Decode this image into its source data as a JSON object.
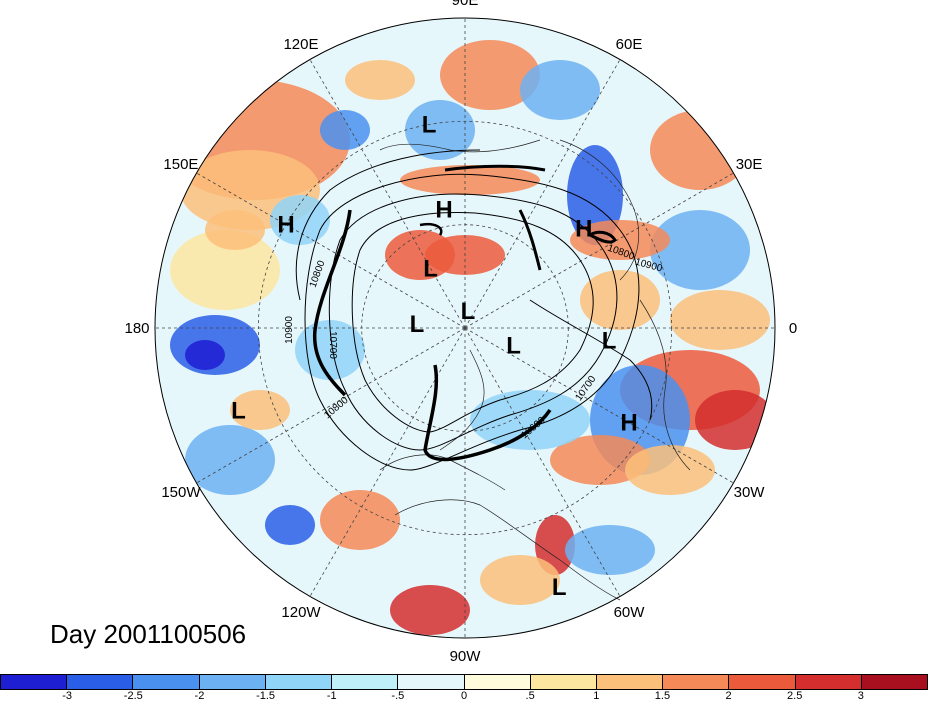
{
  "day_label": "Day 2001100506",
  "longitude_labels": [
    "90E",
    "60E",
    "30E",
    "0",
    "30W",
    "60W",
    "90W",
    "120W",
    "150W",
    "180",
    "150E",
    "120E"
  ],
  "pressure_centers": [
    {
      "label": "L",
      "lon": 100,
      "lat": 30
    },
    {
      "label": "H",
      "lon": 100,
      "lat": 55
    },
    {
      "label": "H",
      "lon": 150,
      "lat": 30
    },
    {
      "label": "L",
      "lon": 120,
      "lat": 70
    },
    {
      "label": "L",
      "lon": 80,
      "lat": 85
    },
    {
      "label": "L",
      "lon": 175,
      "lat": 76
    },
    {
      "label": "H",
      "lon": 40,
      "lat": 45
    },
    {
      "label": "L",
      "lon": -20,
      "lat": 75
    },
    {
      "label": "L",
      "lon": -160,
      "lat": 20
    },
    {
      "label": "L",
      "lon": -5,
      "lat": 48
    },
    {
      "label": "H",
      "lon": -30,
      "lat": 35
    },
    {
      "label": "L",
      "lon": -70,
      "lat": 10
    }
  ],
  "contour_labels": [
    "10800",
    "10900",
    "10700",
    "10800",
    "10600",
    "10700",
    "10800",
    "10900"
  ],
  "colorbar": {
    "colors": [
      "#1e1ed2",
      "#2a5ee6",
      "#4a90ee",
      "#6cb2f2",
      "#90d4f8",
      "#bff0fa",
      "#e6f7fb",
      "#fffcdc",
      "#fde6a0",
      "#fbc07a",
      "#f58a58",
      "#ec5a3c",
      "#d42e2e",
      "#a81020"
    ],
    "ticks": [
      "-3",
      "-2.5",
      "-2",
      "-1.5",
      "-1",
      "-.5",
      "0",
      ".5",
      "1",
      "1.5",
      "2",
      "2.5",
      "3"
    ]
  }
}
